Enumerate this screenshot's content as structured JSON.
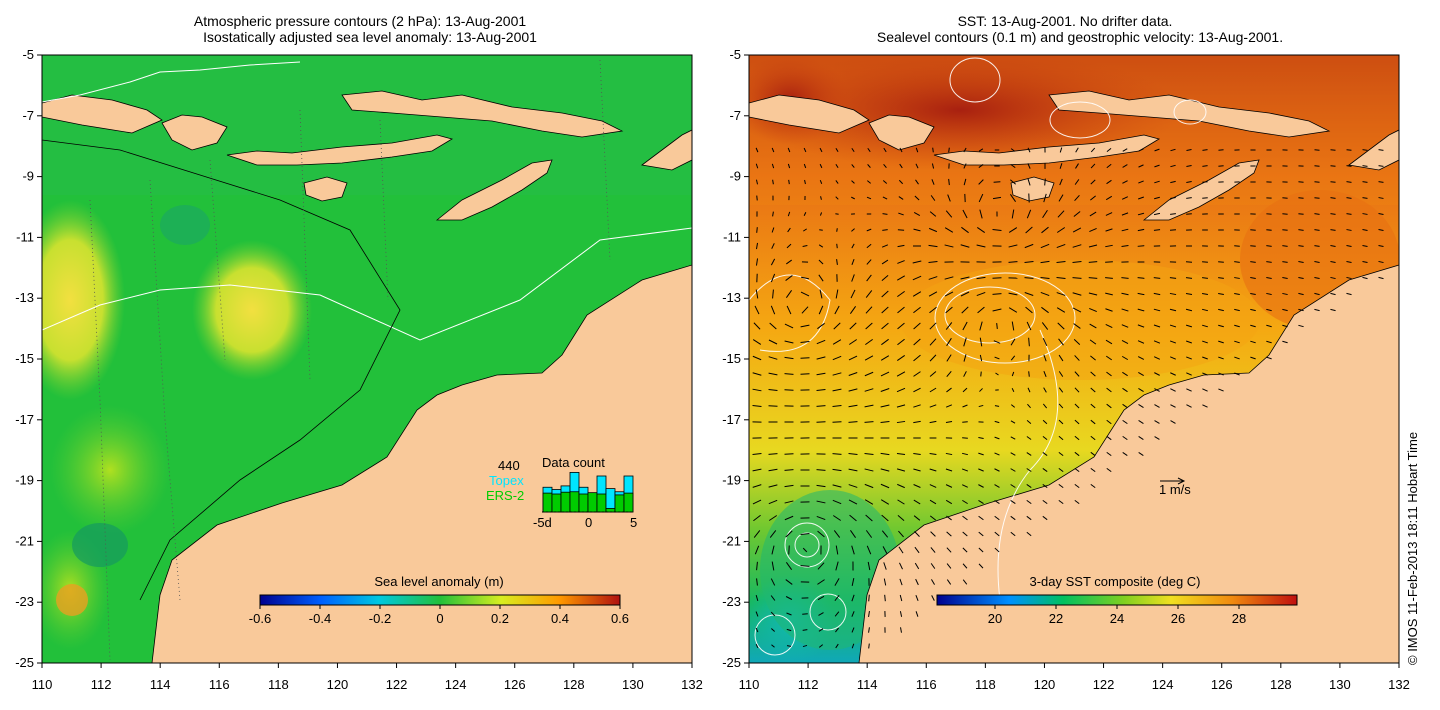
{
  "left_map": {
    "title_line1": "Atmospheric pressure contours (2 hPa): 13-Aug-2001",
    "title_line2": "Isostatically adjusted sea level anomaly: 13-Aug-2001",
    "colorbar_title": "Sea level anomaly (m)",
    "colorbar_ticks": [
      "-0.6",
      "-0.4",
      "-0.2",
      "0",
      "0.2",
      "0.4",
      "0.6"
    ],
    "data_count": {
      "title": "Data count",
      "total": "440",
      "topex_label": "Topex",
      "ers2_label": "ERS-2",
      "axis_labels": [
        "-5d",
        "0",
        "5"
      ],
      "topex_color": "#00e5ff",
      "ers2_color": "#00cc00",
      "bars": [
        {
          "ers2": 0.42,
          "topex": 0.55
        },
        {
          "ers2": 0.4,
          "topex": 0.5
        },
        {
          "ers2": 0.44,
          "topex": 0.58
        },
        {
          "ers2": 0.45,
          "topex": 0.88
        },
        {
          "ers2": 0.4,
          "topex": 0.55
        },
        {
          "ers2": 0.43,
          "topex": 0.42
        },
        {
          "ers2": 0.4,
          "topex": 0.8
        },
        {
          "ers2": 0.08,
          "topex": 0.52
        },
        {
          "ers2": 0.38,
          "topex": 0.45
        },
        {
          "ers2": 0.42,
          "topex": 0.8
        }
      ]
    }
  },
  "right_map": {
    "title_line1": "SST: 13-Aug-2001. No drifter data.",
    "title_line2": "Sealevel contours (0.1 m) and geostrophic velocity: 13-Aug-2001.",
    "colorbar_title": "3-day SST composite (deg C)",
    "colorbar_ticks": [
      "20",
      "22",
      "24",
      "26",
      "28"
    ],
    "scale_label": "1 m/s"
  },
  "x_ticks": [
    "110",
    "112",
    "114",
    "116",
    "118",
    "120",
    "122",
    "124",
    "126",
    "128",
    "130",
    "132"
  ],
  "y_ticks": [
    "-5",
    "-7",
    "-9",
    "-11",
    "-13",
    "-15",
    "-17",
    "-19",
    "-21",
    "-23",
    "-25"
  ],
  "side_credit": "© IMOS 11-Feb-2013 18:11 Hobart Time",
  "colors": {
    "land": "#f9c99a",
    "sla_ocean": "#22c03a",
    "sst_ocean": "#f39a10"
  }
}
